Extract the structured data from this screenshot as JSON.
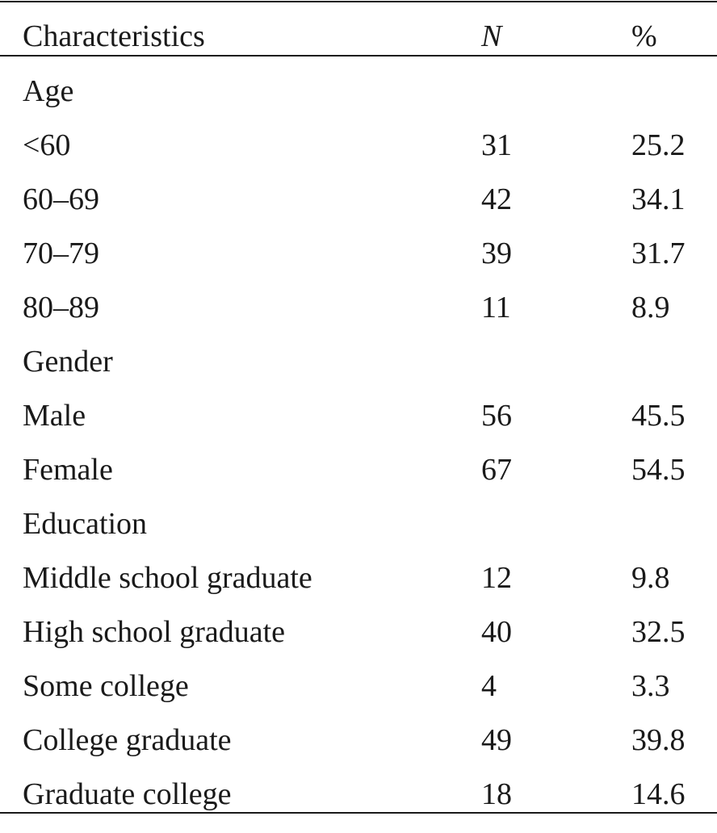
{
  "table": {
    "headers": [
      "Characteristics",
      "N",
      "%"
    ],
    "rows": [
      {
        "label": "Age",
        "n": "",
        "pct": ""
      },
      {
        "label": "<60",
        "n": "31",
        "pct": "25.2"
      },
      {
        "label": "60–69",
        "n": "42",
        "pct": "34.1"
      },
      {
        "label": "70–79",
        "n": "39",
        "pct": "31.7"
      },
      {
        "label": "80–89",
        "n": "11",
        "pct": "8.9"
      },
      {
        "label": "Gender",
        "n": "",
        "pct": ""
      },
      {
        "label": "Male",
        "n": "56",
        "pct": "45.5"
      },
      {
        "label": "Female",
        "n": "67",
        "pct": "54.5"
      },
      {
        "label": "Education",
        "n": "",
        "pct": ""
      },
      {
        "label": "Middle school graduate",
        "n": "12",
        "pct": "9.8"
      },
      {
        "label": "High school graduate",
        "n": "40",
        "pct": "32.5"
      },
      {
        "label": "Some college",
        "n": "4",
        "pct": "3.3"
      },
      {
        "label": "College graduate",
        "n": "49",
        "pct": "39.8"
      },
      {
        "label": "Graduate college",
        "n": "18",
        "pct": "14.6"
      }
    ]
  }
}
